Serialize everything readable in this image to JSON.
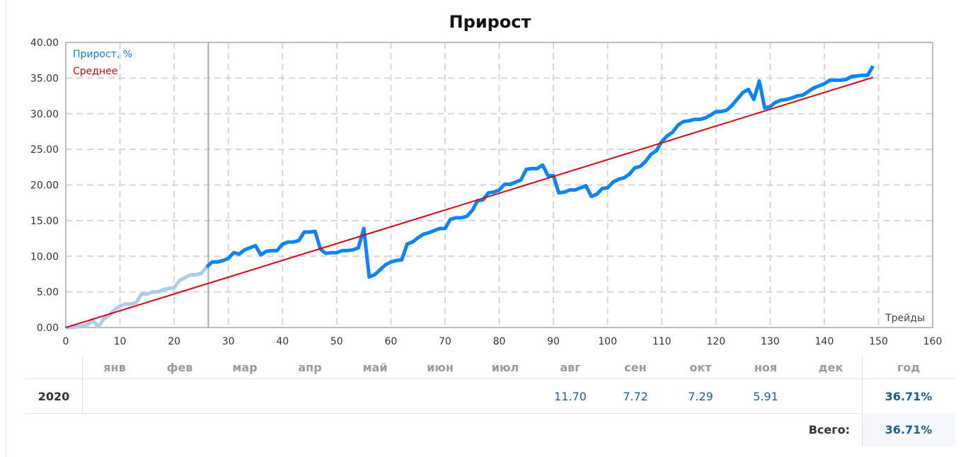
{
  "title": "Прирост",
  "legend": {
    "series_label": "Прирост, %",
    "average_label": "Среднее"
  },
  "x_axis_label": "Трейды",
  "colors": {
    "series": "#0a84ff",
    "series_faded": "#aecbea",
    "average": "#e3000f",
    "grid": "#d6d6d6",
    "frame": "#bdbdbd"
  },
  "chart_data": {
    "type": "line",
    "title": "Прирост",
    "xlabel": "Трейды",
    "ylabel": "",
    "xlim": [
      0,
      160
    ],
    "ylim": [
      0,
      40
    ],
    "x_ticks": [
      0,
      10,
      20,
      30,
      40,
      50,
      60,
      70,
      80,
      90,
      100,
      110,
      120,
      130,
      140,
      150,
      160
    ],
    "y_ticks": [
      "0.00",
      "5.00",
      "10.00",
      "15.00",
      "20.00",
      "25.00",
      "30.00",
      "35.00",
      "40.00"
    ],
    "grid": true,
    "legend_position": "top-left",
    "highlight_start_trade": 26.3,
    "series": [
      {
        "name": "Прирост, %",
        "values": [
          0,
          0,
          0.1,
          0.2,
          0.4,
          1.0,
          0.1,
          1.2,
          1.7,
          2.5,
          3.0,
          3.3,
          3.3,
          3.5,
          4.7,
          4.7,
          5.0,
          5.0,
          5.3,
          5.5,
          5.6,
          6.6,
          7.0,
          7.4,
          7.4,
          7.6,
          8.5,
          9.2,
          9.2,
          9.4,
          9.7,
          10.5,
          10.3,
          10.9,
          11.2,
          11.5,
          10.2,
          10.7,
          10.8,
          10.8,
          11.7,
          12.0,
          12.0,
          12.2,
          13.4,
          13.4,
          13.5,
          11.0,
          10.4,
          10.5,
          10.5,
          10.8,
          10.8,
          10.9,
          11.2,
          13.9,
          7.1,
          7.4,
          8.1,
          8.8,
          9.2,
          9.4,
          9.5,
          11.7,
          12.0,
          12.6,
          13.1,
          13.3,
          13.6,
          13.9,
          13.9,
          15.2,
          15.4,
          15.4,
          15.6,
          16.4,
          17.8,
          17.9,
          18.9,
          19.0,
          19.3,
          20.1,
          20.1,
          20.4,
          20.7,
          22.2,
          22.3,
          22.3,
          22.8,
          21.3,
          21.3,
          18.9,
          19.0,
          19.3,
          19.3,
          19.6,
          19.9,
          18.4,
          18.7,
          19.5,
          19.6,
          20.4,
          20.8,
          21.0,
          21.5,
          22.4,
          22.6,
          23.3,
          24.3,
          24.8,
          26.1,
          26.9,
          27.4,
          28.4,
          28.9,
          29.0,
          29.2,
          29.2,
          29.4,
          29.8,
          30.3,
          30.3,
          30.5,
          31.2,
          32.1,
          33.0,
          33.4,
          32.0,
          34.6,
          30.8,
          31.0,
          31.6,
          31.9,
          32.0,
          32.2,
          32.5,
          32.6,
          33.1,
          33.6,
          33.9,
          34.2,
          34.7,
          34.7,
          34.7,
          34.8,
          35.2,
          35.3,
          35.4,
          35.4,
          36.7
        ]
      },
      {
        "name": "Среднее",
        "x": [
          0,
          149
        ],
        "values": [
          0,
          35.1
        ]
      }
    ]
  },
  "table": {
    "months": [
      "янв",
      "фев",
      "мар",
      "апр",
      "май",
      "июн",
      "июл",
      "авг",
      "сен",
      "окт",
      "ноя",
      "дек"
    ],
    "year_header": "год",
    "rows": [
      {
        "year": "2020",
        "values": [
          "",
          "",
          "",
          "",
          "",
          "",
          "",
          "11.70",
          "7.72",
          "7.29",
          "5.91",
          ""
        ],
        "total": "36.71%"
      }
    ],
    "total_label": "Всего:",
    "total_value": "36.71%"
  }
}
